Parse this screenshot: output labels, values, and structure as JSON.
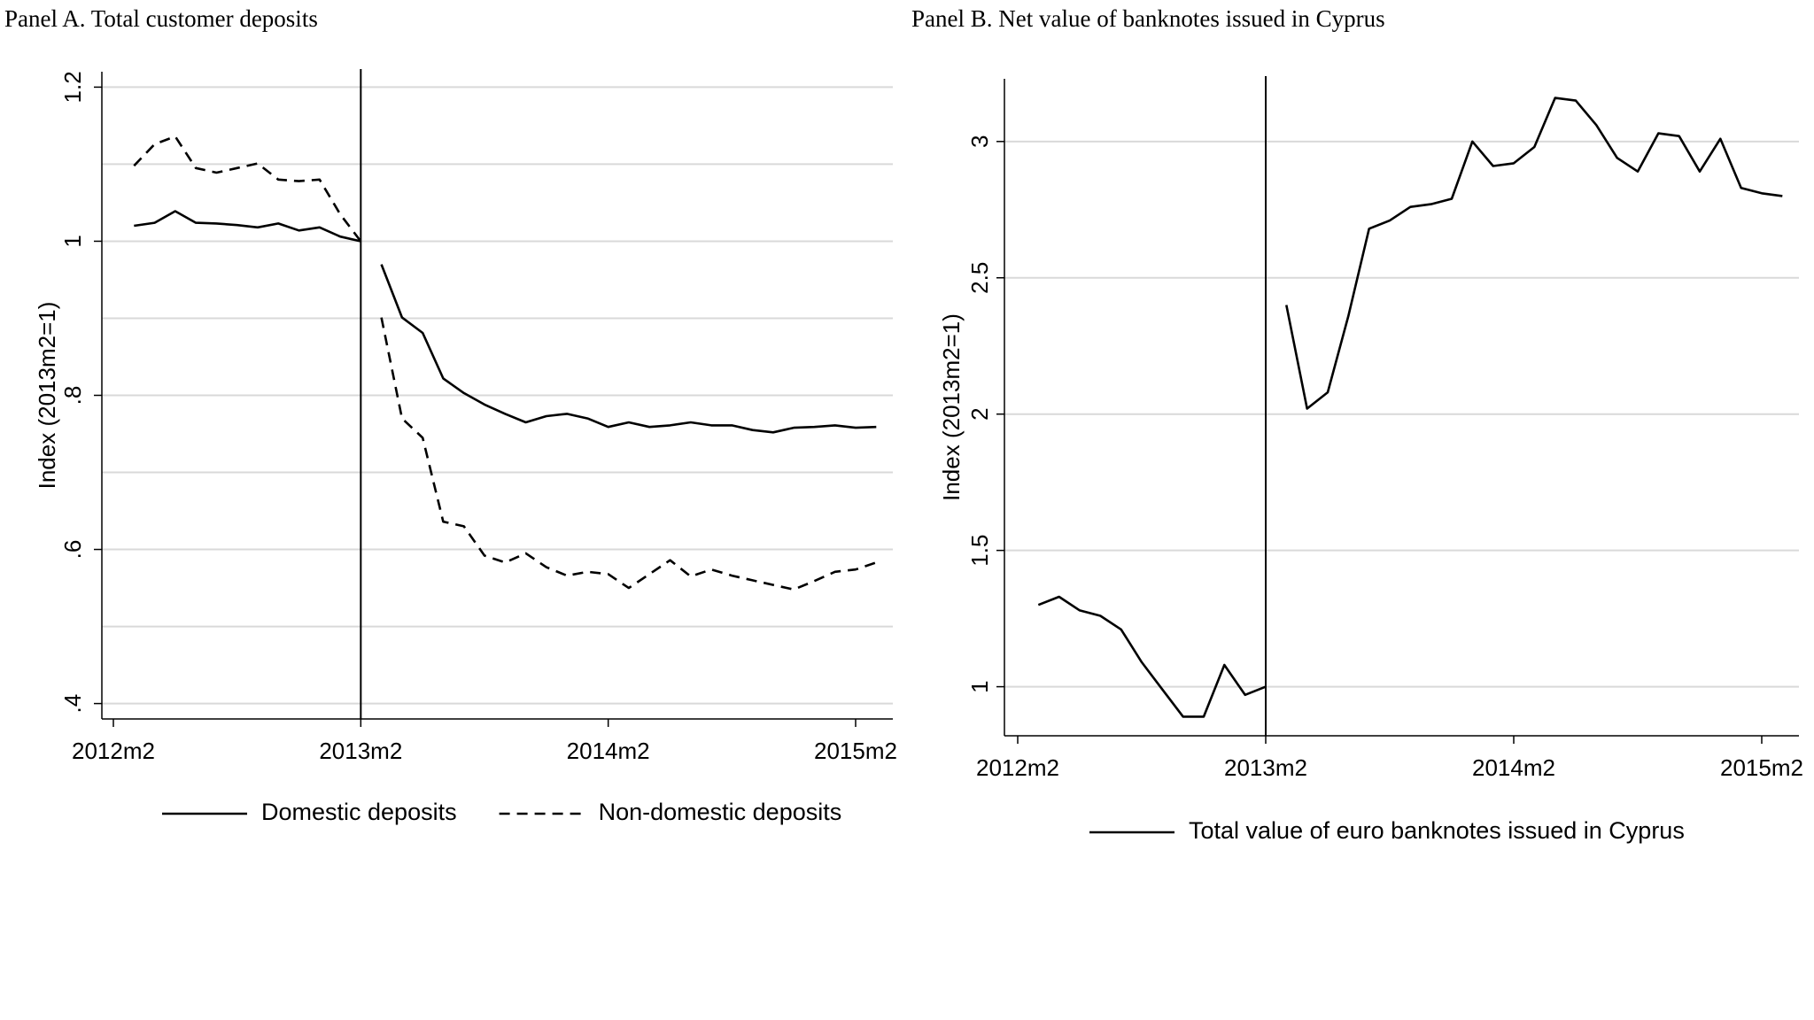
{
  "chart_data": [
    {
      "type": "line",
      "title": "Panel A. Total customer deposits",
      "y_label": "Index (2013m2=1)",
      "x": [
        "2012m3",
        "2012m4",
        "2012m5",
        "2012m6",
        "2012m7",
        "2012m8",
        "2012m9",
        "2012m10",
        "2012m11",
        "2012m12",
        "2013m1",
        "2013m2",
        "2013m3",
        "2013m4",
        "2013m5",
        "2013m6",
        "2013m7",
        "2013m8",
        "2013m9",
        "2013m10",
        "2013m11",
        "2013m12",
        "2014m1",
        "2014m2",
        "2014m3",
        "2014m4",
        "2014m5",
        "2014m6",
        "2014m7",
        "2014m8",
        "2014m9",
        "2014m10",
        "2014m11",
        "2014m12",
        "2015m1",
        "2015m2",
        "2015m3"
      ],
      "xticks": [
        "2012m2",
        "2013m2",
        "2014m2",
        "2015m2"
      ],
      "ylim": [
        0.38,
        1.22
      ],
      "yticks": [
        {
          "value": 0.4,
          "label": ".4"
        },
        {
          "value": 0.6,
          "label": ".6"
        },
        {
          "value": 0.8,
          "label": ".8"
        },
        1,
        {
          "value": 1.2,
          "label": "1.2"
        }
      ],
      "minor_grid": [
        0.5,
        0.7,
        0.9,
        1.1
      ],
      "grid": true,
      "vline": "2013m2",
      "legend": "bottom",
      "series": [
        {
          "name": "Domestic deposits",
          "color": "#000000",
          "line_style": "solid",
          "values": [
            1.02,
            1.024,
            1.039,
            1.024,
            1.023,
            1.021,
            1.018,
            1.023,
            1.014,
            1.018,
            1.006,
            1.0,
            0.97,
            0.901,
            0.881,
            0.822,
            0.803,
            0.788,
            0.776,
            0.765,
            0.773,
            0.776,
            0.77,
            0.759,
            0.765,
            0.759,
            0.761,
            0.765,
            0.761,
            0.761,
            0.755,
            0.752,
            0.758,
            0.759,
            0.761,
            0.758,
            0.759
          ]
        },
        {
          "name": "Non-domestic deposits",
          "color": "#000000",
          "line_style": "dashed",
          "values": [
            1.098,
            1.126,
            1.136,
            1.095,
            1.089,
            1.095,
            1.101,
            1.08,
            1.078,
            1.08,
            1.035,
            1.0,
            0.901,
            0.77,
            0.745,
            0.636,
            0.63,
            0.592,
            0.583,
            0.595,
            0.577,
            0.566,
            0.571,
            0.568,
            0.55,
            0.568,
            0.586,
            0.565,
            0.574,
            0.566,
            0.56,
            0.554,
            0.548,
            0.559,
            0.571,
            0.574,
            0.583
          ]
        }
      ]
    },
    {
      "type": "line",
      "title": "Panel B. Net value of banknotes issued in Cyprus",
      "y_label": "Index (2013m2=1)",
      "x": [
        "2012m3",
        "2012m4",
        "2012m5",
        "2012m6",
        "2012m7",
        "2012m8",
        "2012m9",
        "2012m10",
        "2012m11",
        "2012m12",
        "2013m1",
        "2013m2",
        "2013m3",
        "2013m4",
        "2013m5",
        "2013m6",
        "2013m7",
        "2013m8",
        "2013m9",
        "2013m10",
        "2013m11",
        "2013m12",
        "2014m1",
        "2014m2",
        "2014m3",
        "2014m4",
        "2014m5",
        "2014m6",
        "2014m7",
        "2014m8",
        "2014m9",
        "2014m10",
        "2014m11",
        "2014m12",
        "2015m1",
        "2015m2",
        "2015m3"
      ],
      "xticks": [
        "2012m2",
        "2013m2",
        "2014m2",
        "2015m2"
      ],
      "ylim": [
        0.82,
        3.23
      ],
      "yticks": [
        1,
        1.5,
        2,
        2.5,
        3
      ],
      "grid": true,
      "vline": "2013m2",
      "legend": "bottom",
      "series": [
        {
          "name": "Total value of euro banknotes issued in Cyprus",
          "color": "#000000",
          "line_style": "solid",
          "values": [
            1.3,
            1.33,
            1.28,
            1.26,
            1.21,
            1.09,
            0.99,
            0.89,
            0.89,
            1.08,
            0.97,
            1.0,
            2.4,
            2.02,
            2.08,
            2.36,
            2.68,
            2.71,
            2.76,
            2.77,
            2.79,
            3.0,
            2.91,
            2.92,
            2.98,
            3.16,
            3.15,
            3.06,
            2.94,
            2.89,
            3.03,
            3.02,
            2.89,
            3.01,
            2.83,
            2.81,
            2.8
          ]
        }
      ]
    }
  ]
}
